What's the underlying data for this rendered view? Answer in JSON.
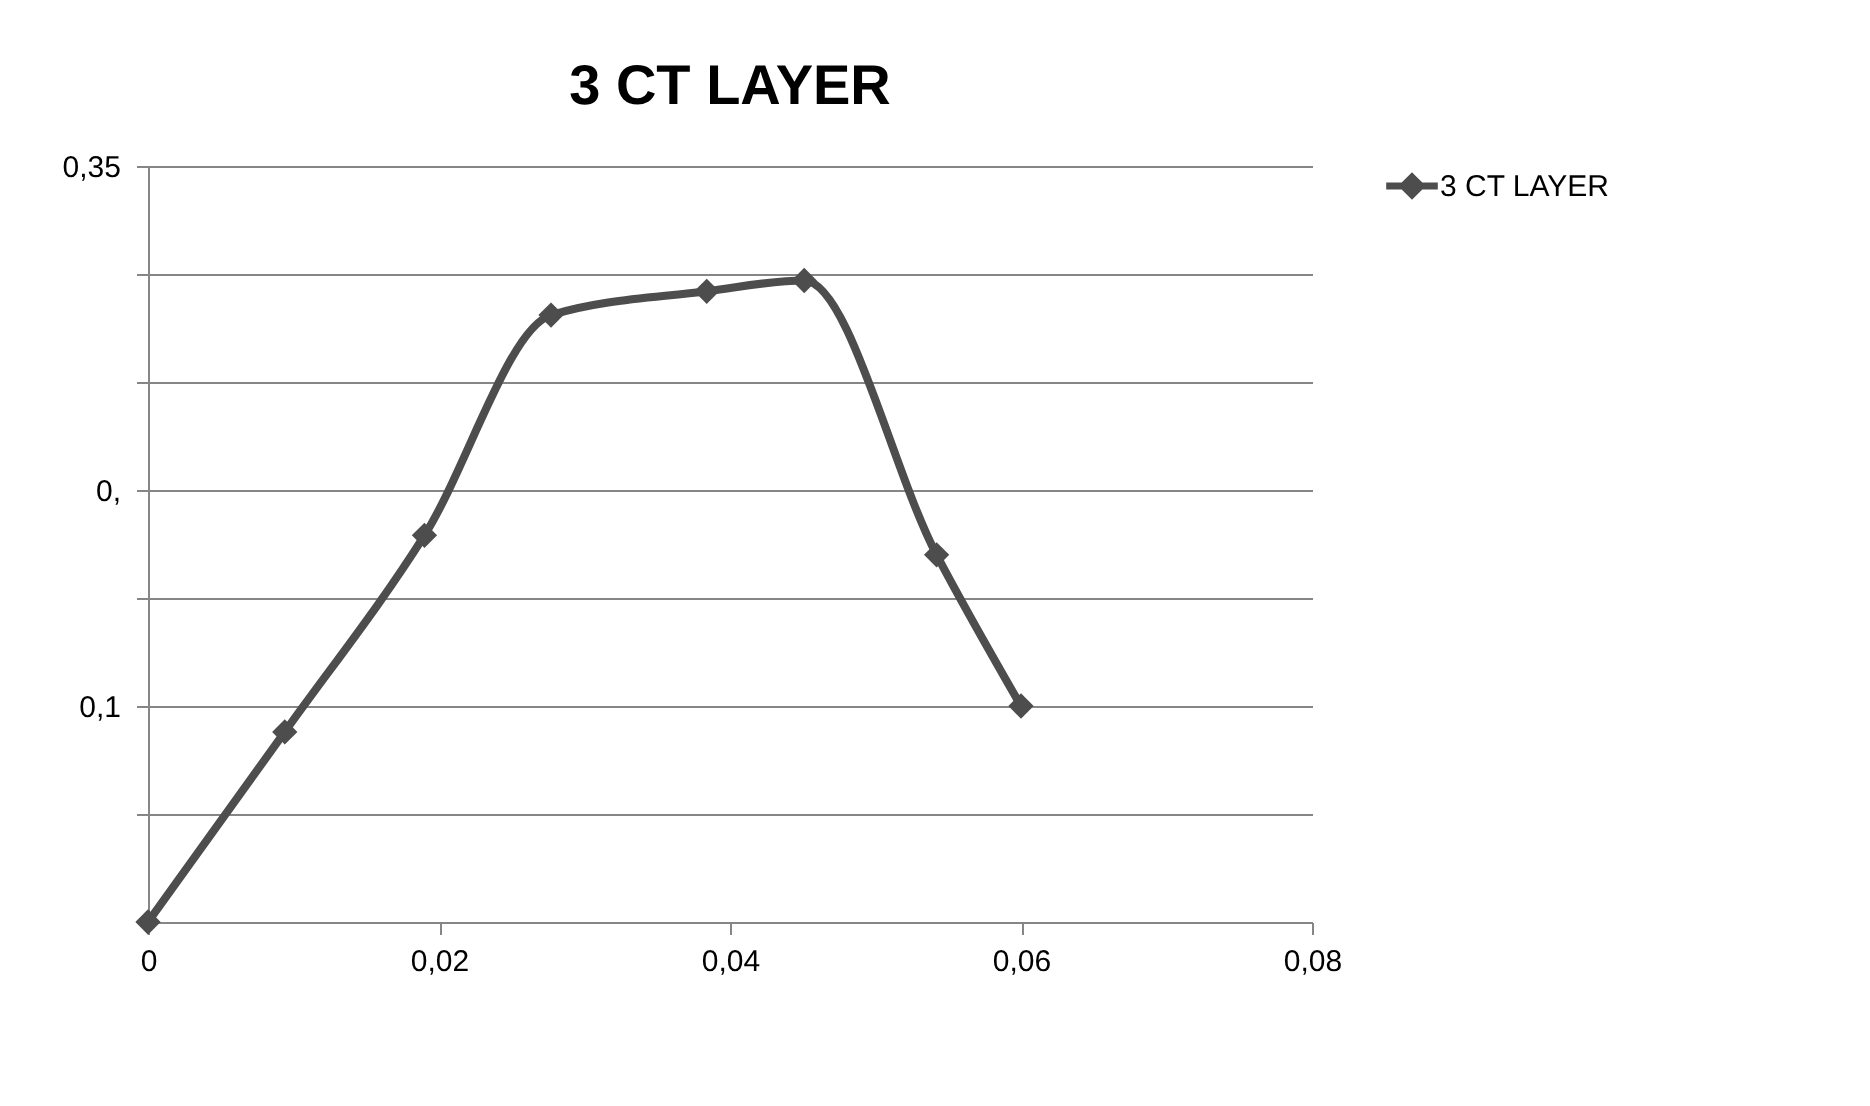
{
  "chart_data": {
    "type": "line",
    "title": "3 CT LAYER",
    "x": [
      0,
      0.0094,
      0.019,
      0.0277,
      0.0384,
      0.0451,
      0.0542,
      0.06
    ],
    "series": [
      {
        "name": "3 CT LAYER",
        "color": "#4d4d4d",
        "values": [
          0,
          0.088,
          0.179,
          0.281,
          0.292,
          0.297,
          0.17,
          0.1
        ]
      }
    ],
    "xlim": [
      0,
      0.08
    ],
    "xticks": [
      {
        "value": 0,
        "label": "0"
      },
      {
        "value": 0.02,
        "label": "0,02"
      },
      {
        "value": 0.04,
        "label": "0,04"
      },
      {
        "value": 0.06,
        "label": "0,06"
      },
      {
        "value": 0.08,
        "label": "0,08"
      }
    ],
    "ylim": [
      0,
      0.35
    ],
    "yticks": [
      {
        "value": 0,
        "label": null
      },
      {
        "value": 0.05,
        "label": null
      },
      {
        "value": 0.1,
        "label": "0,1"
      },
      {
        "value": 0.15,
        "label": null
      },
      {
        "value": 0.2,
        "label": "0,"
      },
      {
        "value": 0.25,
        "label": null
      },
      {
        "value": 0.3,
        "label": null
      },
      {
        "value": 0.35,
        "label": "0,35"
      }
    ],
    "grid": "y",
    "legend": "right",
    "marker": "diamond",
    "line_style": "solid"
  }
}
